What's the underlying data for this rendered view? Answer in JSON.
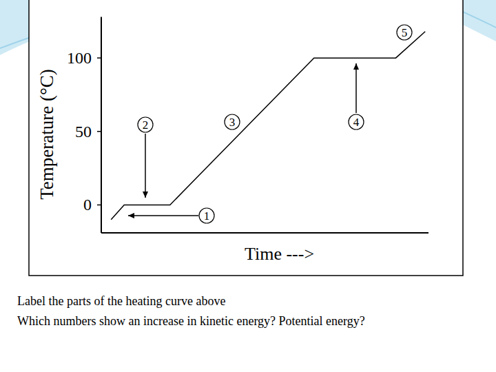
{
  "chart_data": {
    "type": "line",
    "y_label": "Temperature (°C)",
    "x_label": "Time --->",
    "x": [
      3,
      7,
      21,
      65,
      90,
      99
    ],
    "values": [
      -10,
      0,
      0,
      100,
      100,
      118
    ],
    "color": "#000000",
    "xlim": [
      0,
      100
    ],
    "ylim": [
      -19,
      128
    ],
    "yticks": [
      0,
      50,
      100
    ],
    "tick_labels": "y",
    "grid": false,
    "annotations": [
      "1",
      "2",
      "3",
      "4",
      "5"
    ],
    "notes": [
      "Label the parts of the heating curve above",
      "Which numbers show an increase in kinetic energy? Potential energy?"
    ]
  }
}
